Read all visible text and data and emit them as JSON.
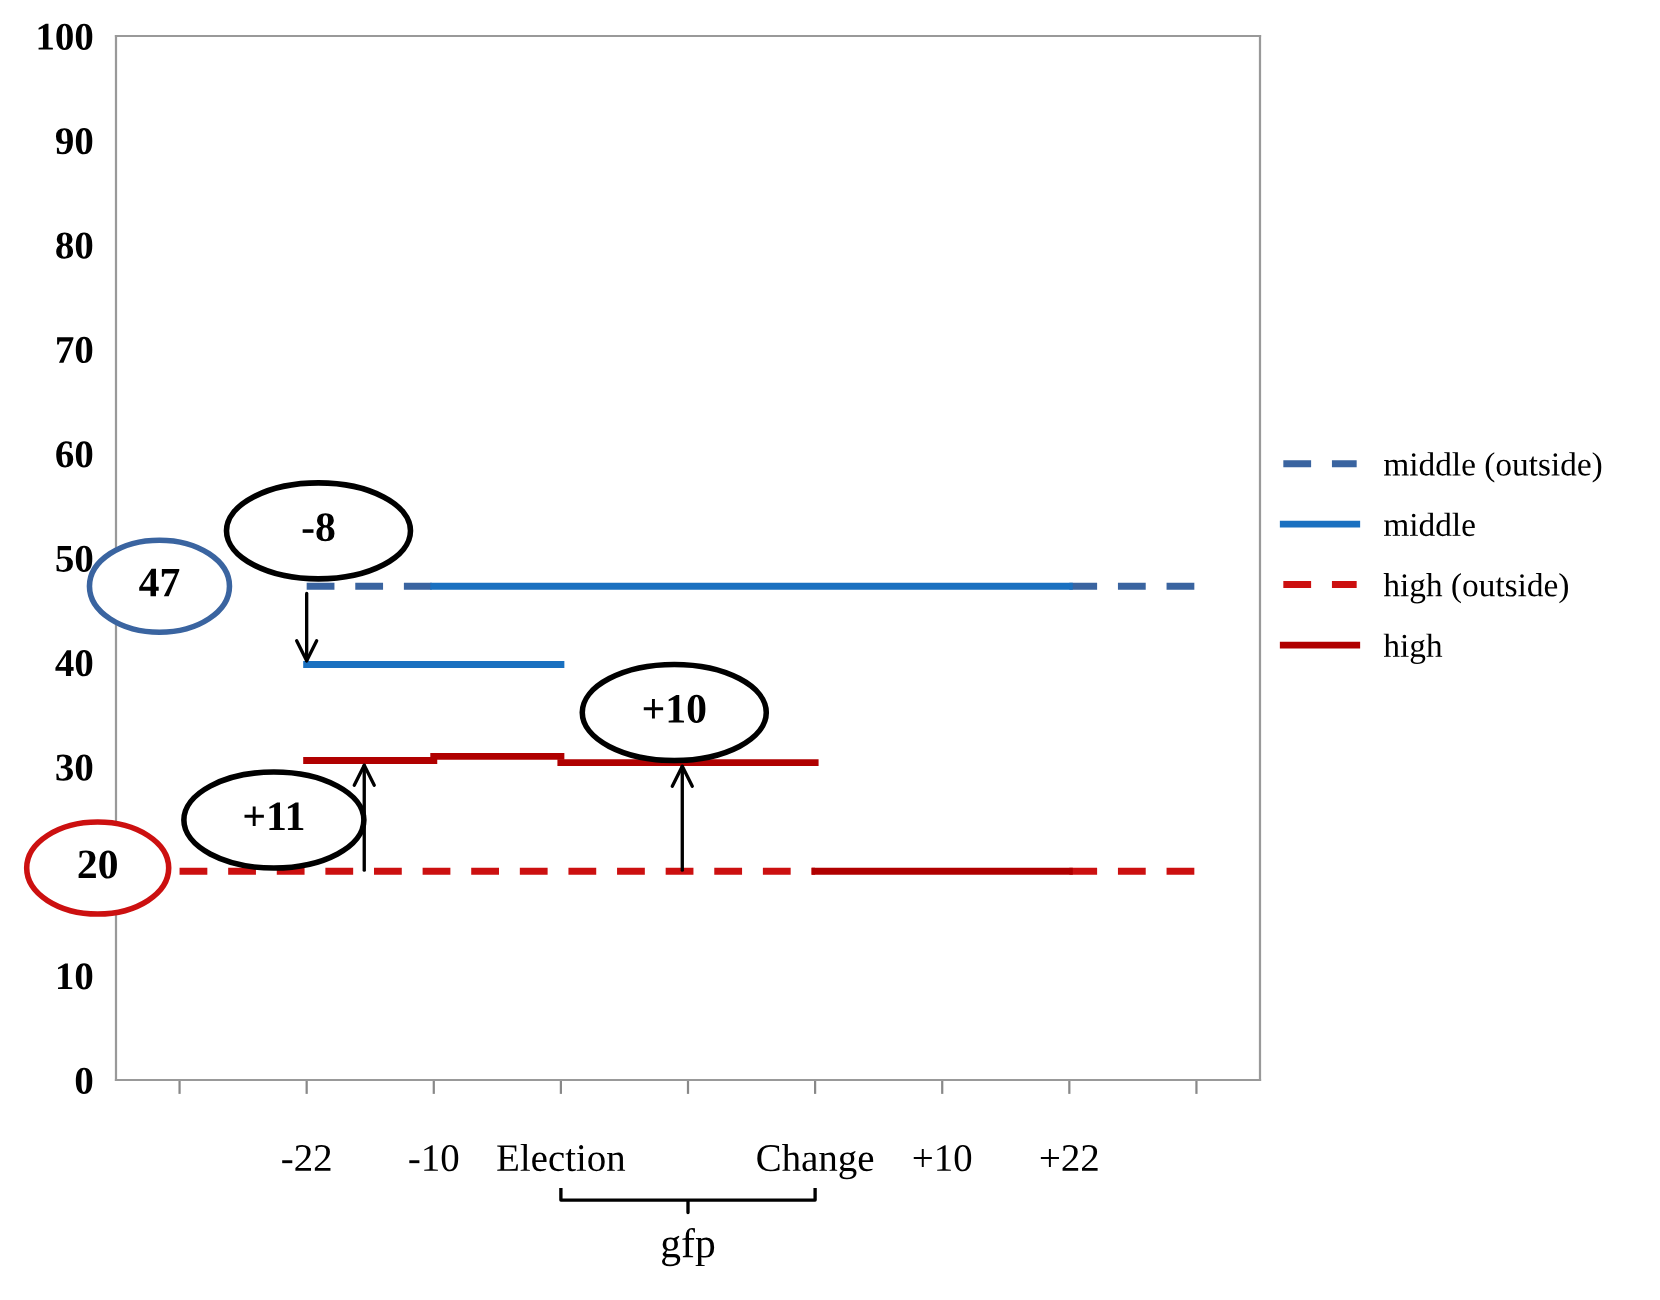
{
  "chart_data": {
    "type": "line",
    "ylim": [
      0,
      100
    ],
    "yticks": [
      0,
      10,
      30,
      40,
      50,
      60,
      70,
      80,
      90,
      100
    ],
    "categories": [
      null,
      "-22",
      "-10",
      "Election",
      null,
      "Change",
      "+10",
      "+22",
      null
    ],
    "grid": false,
    "legend": "right",
    "series": [
      {
        "name": "middle (outside)",
        "color": "#3a64a0",
        "line_style": "dashed",
        "values": [
          null,
          47.3,
          47.3,
          null,
          null,
          null,
          null,
          47.3,
          47.3
        ]
      },
      {
        "name": "middle",
        "color": "#1a70c0",
        "line_style": "solid",
        "values": [
          null,
          null,
          47.3,
          47.3,
          47.3,
          47.3,
          47.3,
          47.3,
          null
        ]
      },
      {
        "color": "#1a70c0",
        "line_style": "solid",
        "values": [
          null,
          39.8,
          39.8,
          39.8,
          null,
          null,
          null,
          null,
          null
        ]
      },
      {
        "name": "high (outside)",
        "color": "#cc1010",
        "line_style": "dashed",
        "values": [
          20,
          20,
          20,
          20,
          20,
          20,
          null,
          20,
          20
        ]
      },
      {
        "name": "high",
        "color": "#b00000",
        "line_style": "solid",
        "values": [
          null,
          30.6,
          30.6,
          null,
          null,
          null,
          null,
          null,
          null
        ]
      },
      {
        "color": "#b00000",
        "line_style": "solid",
        "values": [
          null,
          null,
          31,
          31,
          null,
          null,
          null,
          null,
          null
        ]
      },
      {
        "color": "#b00000",
        "line_style": "solid",
        "values": [
          null,
          null,
          null,
          30.4,
          30.4,
          30.4,
          null,
          null,
          null
        ]
      },
      {
        "color": "#b00000",
        "line_style": "solid",
        "values": [
          null,
          null,
          null,
          null,
          null,
          20,
          20,
          20,
          null
        ]
      }
    ],
    "annotations": [
      "47",
      "20",
      {
        "text": "-8",
        "x": "-22",
        "y": 39.8
      },
      "+11",
      {
        "text": "+10",
        "y": 30.4
      },
      "gfp"
    ]
  }
}
